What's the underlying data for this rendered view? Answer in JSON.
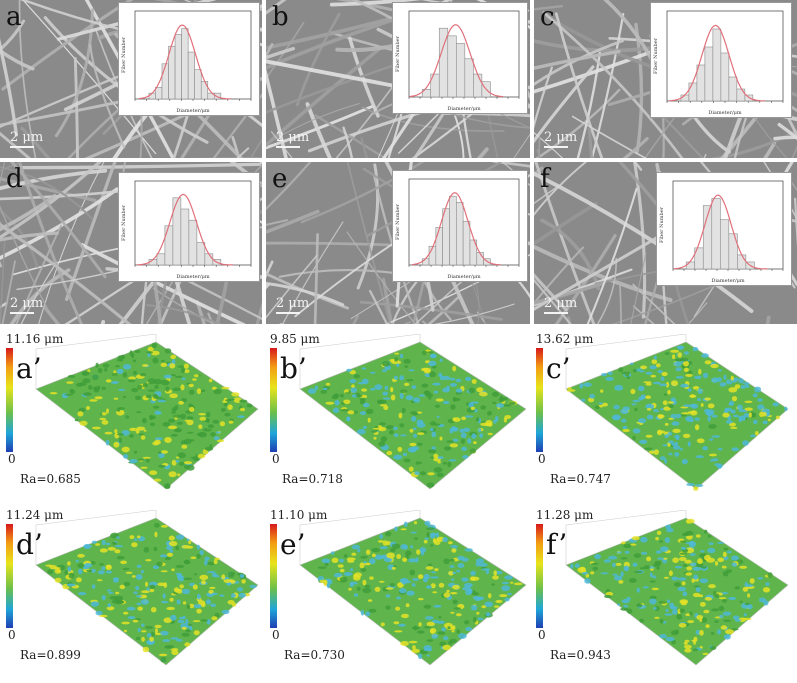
{
  "sem_panels": [
    {
      "label": "a",
      "scale": "2 μm"
    },
    {
      "label": "b",
      "scale": "2 μm"
    },
    {
      "label": "c",
      "scale": "2 μm"
    },
    {
      "label": "d",
      "scale": "2 μm"
    },
    {
      "label": "e",
      "scale": "2 μm"
    },
    {
      "label": "f",
      "scale": "2 μm"
    }
  ],
  "histogram": {
    "ylabel": "Fiber Number",
    "xlabel": "Diameter/μm"
  },
  "topo_panels": [
    {
      "label": "a’",
      "max": "11.16 μm",
      "zero": "0",
      "ra": "Ra=0.685"
    },
    {
      "label": "b’",
      "max": "9.85 μm",
      "zero": "0",
      "ra": "Ra=0.718"
    },
    {
      "label": "c’",
      "max": "13.62 μm",
      "zero": "0",
      "ra": "Ra=0.747"
    },
    {
      "label": "d’",
      "max": "11.24 μm",
      "zero": "0",
      "ra": "Ra=0.899"
    },
    {
      "label": "e’",
      "max": "11.10 μm",
      "zero": "0",
      "ra": "Ra=0.730"
    },
    {
      "label": "f’",
      "max": "11.28 μm",
      "zero": "0",
      "ra": "Ra=0.943"
    }
  ],
  "colors": {
    "curve": "#e0707a",
    "bar": "#e2e2e2",
    "sem_bg": "#8f8f8f"
  },
  "chart_data": [
    {
      "type": "bar",
      "panel": "a",
      "values": [
        1,
        2,
        6,
        9,
        11,
        12,
        8,
        5,
        3,
        1,
        1
      ]
    },
    {
      "type": "bar",
      "panel": "b",
      "values": [
        1,
        3,
        9,
        8,
        7,
        5,
        3,
        2
      ]
    },
    {
      "type": "bar",
      "panel": "c",
      "values": [
        1,
        3,
        6,
        9,
        12,
        8,
        4,
        2,
        1
      ]
    },
    {
      "type": "bar",
      "panel": "d",
      "values": [
        1,
        2,
        7,
        12,
        10,
        8,
        4,
        2,
        1
      ]
    },
    {
      "type": "bar",
      "panel": "e",
      "values": [
        1,
        3,
        6,
        9,
        11,
        10,
        7,
        4,
        2,
        1
      ]
    },
    {
      "type": "bar",
      "panel": "f",
      "values": [
        1,
        3,
        9,
        10,
        7,
        5,
        2,
        1
      ]
    }
  ]
}
